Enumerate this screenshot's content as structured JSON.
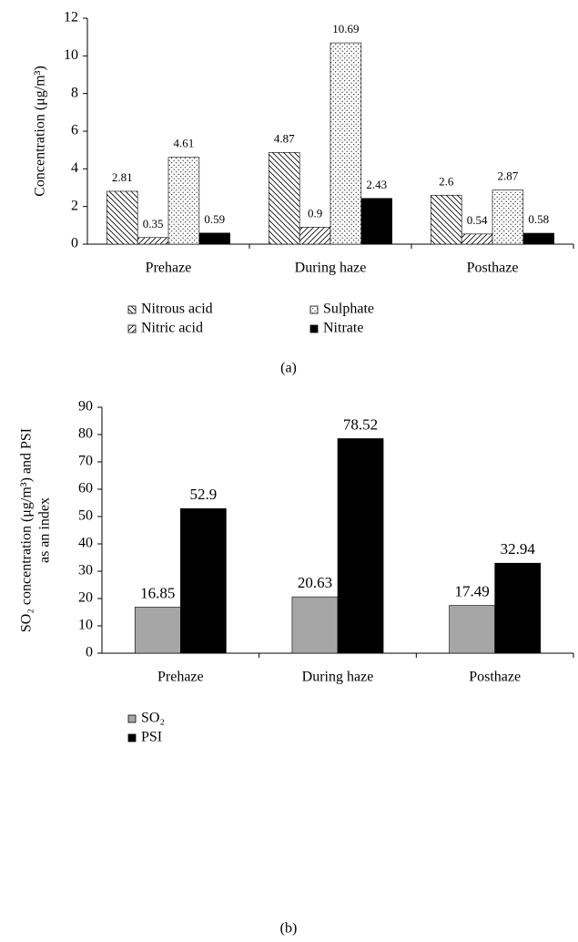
{
  "chart_data": [
    {
      "type": "bar",
      "categories": [
        "Prehaze",
        "During haze",
        "Posthaze"
      ],
      "series": [
        {
          "name": "Nitrous acid",
          "color": "#000000",
          "pattern": "hatch-back",
          "values": [
            2.81,
            4.87,
            2.6
          ]
        },
        {
          "name": "Nitric acid",
          "color": "#000000",
          "pattern": "hatch-forward",
          "values": [
            0.35,
            0.9,
            0.54
          ]
        },
        {
          "name": "Sulphate",
          "color": "#000000",
          "pattern": "dots",
          "values": [
            4.61,
            10.69,
            2.87
          ]
        },
        {
          "name": "Nitrate",
          "color": "#000000",
          "pattern": "solid",
          "values": [
            0.59,
            2.43,
            0.58
          ]
        }
      ],
      "ylabel": [
        "Concentration (μg/m³)"
      ],
      "ylim": [
        0,
        12
      ],
      "yticks": [
        0,
        2,
        4,
        6,
        8,
        10,
        12
      ],
      "grid": false,
      "legend_columns": 2,
      "caption": "(a)"
    },
    {
      "type": "bar",
      "categories": [
        "Prehaze",
        "During haze",
        "Posthaze"
      ],
      "series": [
        {
          "name": "SO₂",
          "color": "#a6a6a6",
          "pattern": "solid",
          "values": [
            16.85,
            20.63,
            17.49
          ]
        },
        {
          "name": "PSI",
          "color": "#000000",
          "pattern": "solid",
          "values": [
            52.9,
            78.52,
            32.94
          ]
        }
      ],
      "ylabel": [
        "SO₂ concentration (μg/m³) and PSI",
        "as an index"
      ],
      "ylim": [
        0,
        90
      ],
      "yticks": [
        0,
        10,
        20,
        30,
        40,
        50,
        60,
        70,
        80,
        90
      ],
      "grid": false,
      "legend_columns": 1,
      "caption": "(b)"
    }
  ]
}
